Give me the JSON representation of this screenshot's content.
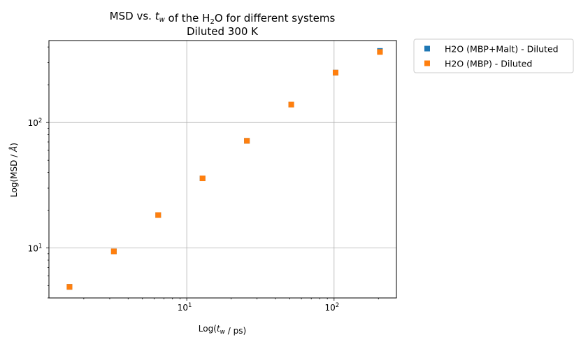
{
  "chart_data": {
    "type": "scatter",
    "title": "MSD vs. t_w of the H₂O for different systems",
    "subtitle": "Diluted 300 K",
    "xlabel": "Log(t_w / ps)",
    "ylabel": "Log(MSD / Å)",
    "xscale": "log",
    "yscale": "log",
    "xlim": [
      1.16,
      265
    ],
    "ylim": [
      4.0,
      450
    ],
    "grid": true,
    "legend_position": "outside-right-top",
    "x_ticks": [
      {
        "value": 10,
        "base": "10",
        "exp": "1"
      },
      {
        "value": 100,
        "base": "10",
        "exp": "2"
      }
    ],
    "y_ticks": [
      {
        "value": 10,
        "base": "10",
        "exp": "1"
      },
      {
        "value": 100,
        "base": "10",
        "exp": "2"
      }
    ],
    "series": [
      {
        "name": "H2O (MBP+Malt) - Diluted",
        "color": "#1f77b4",
        "marker": "square",
        "x": [
          1.6,
          3.2,
          6.4,
          12.8,
          25.6,
          51.2,
          102.4,
          204.8
        ],
        "y": [
          4.9,
          9.4,
          18.3,
          35.9,
          71.5,
          139,
          250,
          372
        ]
      },
      {
        "name": "H2O (MBP) - Diluted",
        "color": "#ff7f0e",
        "marker": "square",
        "x": [
          1.6,
          3.2,
          6.4,
          12.8,
          25.6,
          51.2,
          102.4,
          204.8
        ],
        "y": [
          4.9,
          9.4,
          18.3,
          35.9,
          71.5,
          139,
          250,
          365
        ]
      }
    ]
  }
}
